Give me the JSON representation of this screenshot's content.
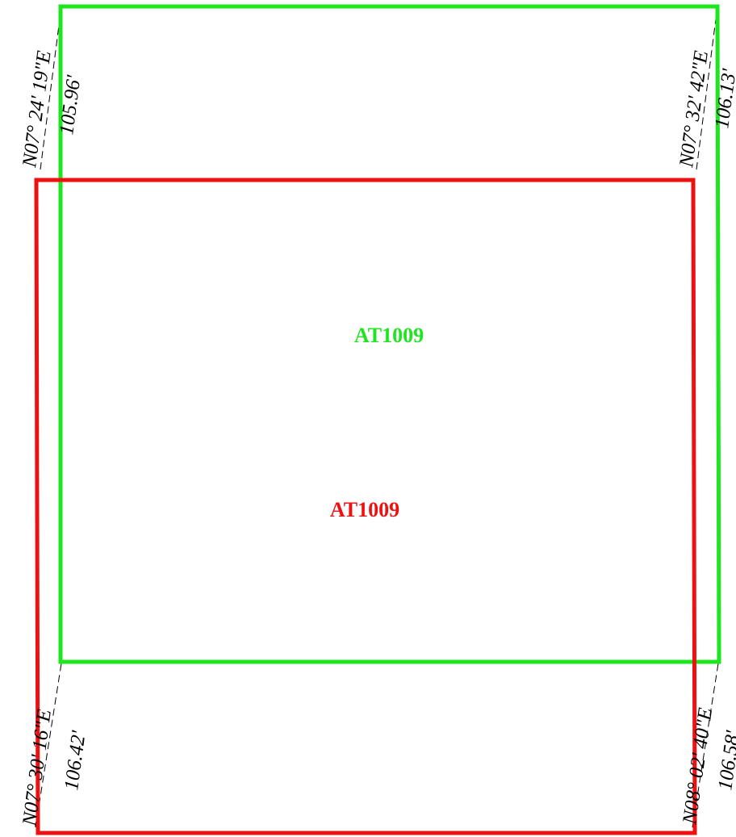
{
  "colors": {
    "green_parcel": "#1ee61e",
    "red_parcel": "#ee1111",
    "annotation": "#000000"
  },
  "parcels": {
    "green": {
      "label": "AT1009"
    },
    "red": {
      "label": "AT1009"
    }
  },
  "lines": {
    "green_west": {
      "bearing": "N07° 24' 19\"E",
      "distance": "105.96'"
    },
    "green_east": {
      "bearing": "N07° 32' 42\"E",
      "distance": "106.13'"
    },
    "red_west": {
      "bearing": "N07° 30' 16\"E",
      "distance": "106.42'"
    },
    "red_east": {
      "bearing": "N08° 02' 40\"E",
      "distance": "106.58'"
    }
  }
}
